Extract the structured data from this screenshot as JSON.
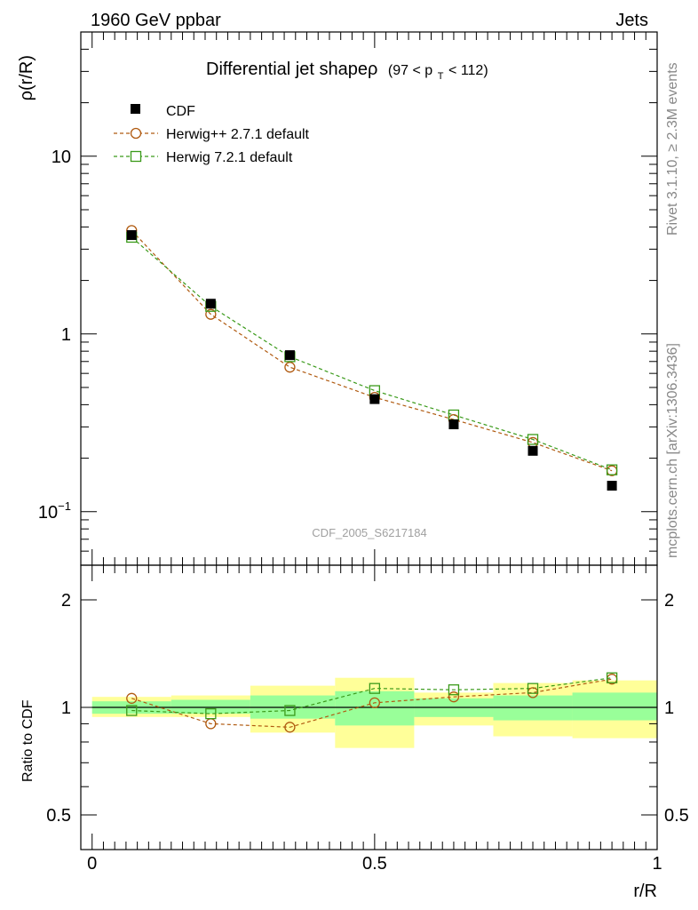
{
  "header": {
    "left": "1960 GeV ppbar",
    "right": "Jets"
  },
  "side_labels": {
    "rivet": "Rivet 3.1.10, ≥ 2.3M events",
    "mcplots": "mcplots.cern.ch [arXiv:1306.3436]"
  },
  "watermark": "CDF_2005_S6217184",
  "colors": {
    "data": "#000000",
    "herwigpp": "#b05a10",
    "herwig7": "#3a9a1a",
    "band_inner": "#99ff99",
    "band_outer": "#ffff99"
  },
  "chart_data": [
    {
      "type": "line",
      "title": "Differential jet shapeρ",
      "title_range": {
        "lo": "(97 < p",
        "sub": "T",
        "hi": " < 112)"
      },
      "ylabel": "ρ(r/R)",
      "xlabel": "",
      "xlim": [
        -0.02,
        1.0
      ],
      "ylim": [
        0.05,
        50
      ],
      "yscale": "log",
      "yticks": [
        {
          "value": 0.1,
          "label": "10",
          "sup": "−1"
        },
        {
          "value": 1,
          "label": "1",
          "sup": ""
        },
        {
          "value": 10,
          "label": "10",
          "sup": ""
        }
      ],
      "legend_position": "top-left",
      "x": [
        0.07,
        0.21,
        0.35,
        0.5,
        0.64,
        0.78,
        0.92
      ],
      "series": [
        {
          "name": "CDF",
          "marker": "filled-square",
          "values": [
            3.6,
            1.48,
            0.76,
            0.43,
            0.31,
            0.22,
            0.14
          ]
        },
        {
          "name": "Herwig++ 2.7.1 default",
          "marker": "open-circle",
          "values": [
            3.82,
            1.29,
            0.65,
            0.44,
            0.33,
            0.245,
            0.17
          ]
        },
        {
          "name": "Herwig 7.2.1 default",
          "marker": "open-square",
          "values": [
            3.5,
            1.43,
            0.745,
            0.48,
            0.35,
            0.255,
            0.172
          ]
        }
      ]
    },
    {
      "type": "line",
      "title": "",
      "ylabel": "Ratio to CDF",
      "xlabel": "r/R",
      "xlim": [
        -0.02,
        1.0
      ],
      "ylim": [
        0.4,
        2.5
      ],
      "yscale": "log",
      "xticks": [
        {
          "value": 0,
          "label": "0"
        },
        {
          "value": 0.5,
          "label": "0.5"
        },
        {
          "value": 1,
          "label": "1"
        }
      ],
      "yticks": [
        {
          "value": 0.5,
          "label": "0.5"
        },
        {
          "value": 1,
          "label": "1"
        },
        {
          "value": 2,
          "label": "2"
        }
      ],
      "reference": 1,
      "bins": [
        {
          "x0": 0.0,
          "x1": 0.14,
          "inner": [
            0.96,
            1.04
          ],
          "outer": [
            0.94,
            1.07
          ]
        },
        {
          "x0": 0.14,
          "x1": 0.28,
          "inner": [
            0.96,
            1.05
          ],
          "outer": [
            0.94,
            1.08
          ]
        },
        {
          "x0": 0.28,
          "x1": 0.43,
          "inner": [
            0.93,
            1.08
          ],
          "outer": [
            0.85,
            1.15
          ]
        },
        {
          "x0": 0.43,
          "x1": 0.57,
          "inner": [
            0.89,
            1.11
          ],
          "outer": [
            0.77,
            1.21
          ]
        },
        {
          "x0": 0.57,
          "x1": 0.71,
          "inner": [
            0.94,
            1.06
          ],
          "outer": [
            0.89,
            1.1
          ]
        },
        {
          "x0": 0.71,
          "x1": 0.85,
          "inner": [
            0.92,
            1.08
          ],
          "outer": [
            0.83,
            1.17
          ]
        },
        {
          "x0": 0.85,
          "x1": 1.0,
          "inner": [
            0.92,
            1.1
          ],
          "outer": [
            0.82,
            1.19
          ]
        }
      ],
      "x": [
        0.07,
        0.21,
        0.35,
        0.5,
        0.64,
        0.78,
        0.92
      ],
      "series": [
        {
          "name": "Herwig++ 2.7.1 default",
          "marker": "open-circle",
          "values": [
            1.06,
            0.9,
            0.88,
            1.03,
            1.07,
            1.1,
            1.2
          ]
        },
        {
          "name": "Herwig 7.2.1 default",
          "marker": "open-square",
          "values": [
            0.98,
            0.96,
            0.98,
            1.13,
            1.12,
            1.13,
            1.21
          ]
        }
      ]
    }
  ]
}
